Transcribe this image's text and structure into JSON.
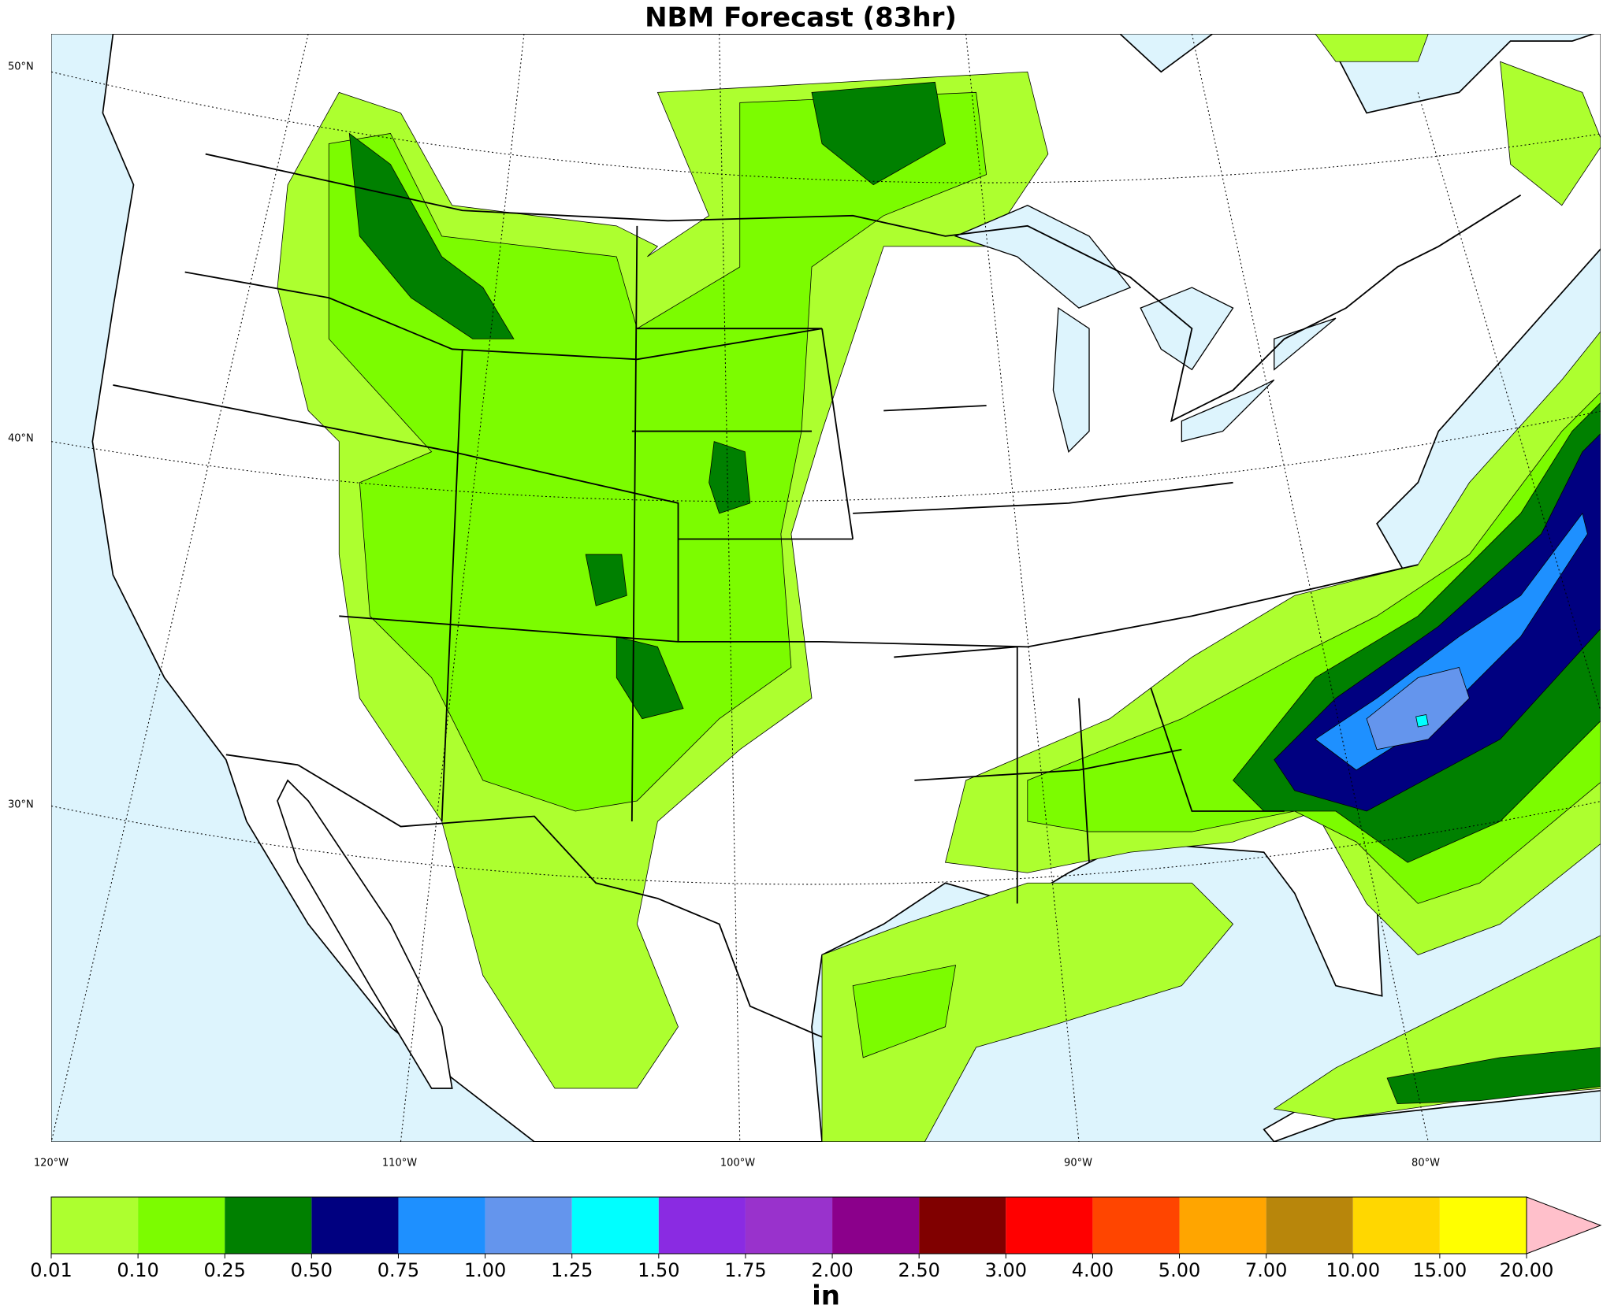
{
  "title": "NBM Forecast (83hr)",
  "map": {
    "lat_labels": [
      "50°N",
      "40°N",
      "30°N"
    ],
    "lon_labels": [
      "120°W",
      "110°W",
      "100°W",
      "90°W",
      "80°W"
    ]
  },
  "colorbar": {
    "unit": "in",
    "levels": [
      {
        "value": 0.01,
        "label": "0.01"
      },
      {
        "value": 0.1,
        "label": "0.10"
      },
      {
        "value": 0.25,
        "label": "0.25"
      },
      {
        "value": 0.5,
        "label": "0.50"
      },
      {
        "value": 0.75,
        "label": "0.75"
      },
      {
        "value": 1,
        "label": "1.00"
      },
      {
        "value": 1.25,
        "label": "1.25"
      },
      {
        "value": 1.5,
        "label": "1.50"
      },
      {
        "value": 1.75,
        "label": "1.75"
      },
      {
        "value": 2,
        "label": "2.00"
      },
      {
        "value": 2.5,
        "label": "2.50"
      },
      {
        "value": 3,
        "label": "3.00"
      },
      {
        "value": 4,
        "label": "4.00"
      },
      {
        "value": 5,
        "label": "5.00"
      },
      {
        "value": 7,
        "label": "7.00"
      },
      {
        "value": 10,
        "label": "10.00"
      },
      {
        "value": 15,
        "label": "15.00"
      },
      {
        "value": 20,
        "label": "20.00"
      }
    ],
    "colors": [
      "#adff2f",
      "#7cfc00",
      "#008000",
      "#000080",
      "#1e90ff",
      "#6495ed",
      "#00ffff",
      "#8a2be2",
      "#9932cc",
      "#8b008b",
      "#800000",
      "#ff0000",
      "#ff4500",
      "#ffa500",
      "#b8860b",
      "#ffd700",
      "#ffff00"
    ],
    "extend_color": "#ffc0cb"
  }
}
